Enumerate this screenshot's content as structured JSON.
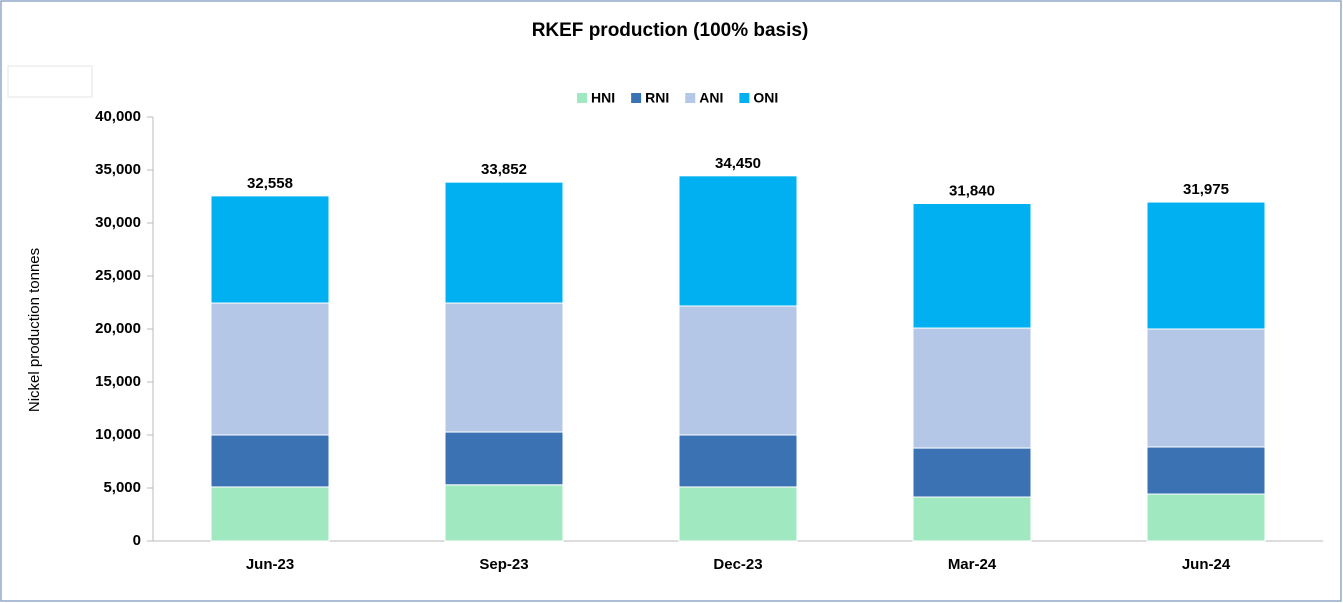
{
  "chart_data": {
    "type": "stacked_bar",
    "title": "RKEF production (100% basis)",
    "ylabel": "Nickel production tonnes",
    "categories": [
      "Jun-23",
      "Sep-23",
      "Dec-23",
      "Mar-24",
      "Jun-24"
    ],
    "series": [
      {
        "name": "HNI",
        "color": "#a0e8c0",
        "values": [
          5100,
          5300,
          5100,
          4150,
          4430
        ]
      },
      {
        "name": "RNI",
        "color": "#3a72b4",
        "values": [
          4900,
          4980,
          4900,
          4620,
          4440
        ]
      },
      {
        "name": "ANI",
        "color": "#b4c7e7",
        "values": [
          12450,
          12170,
          12170,
          11320,
          11130
        ]
      },
      {
        "name": "ONI",
        "color": "#00b0f0",
        "values": [
          10108,
          11402,
          12280,
          11750,
          11975
        ]
      }
    ],
    "totals": {
      "values": [
        32558,
        33852,
        34450,
        31840,
        31975
      ],
      "value_labels": [
        "32,558",
        "33,852",
        "34,450",
        "31,840",
        "31,975"
      ]
    },
    "ylim": [
      0,
      40000
    ],
    "yticks": [
      0,
      {
        "value": 5000,
        "label": "5,000"
      },
      {
        "value": 10000,
        "label": "10,000"
      },
      {
        "value": 15000,
        "label": "15,000"
      },
      {
        "value": 20000,
        "label": "20,000"
      },
      {
        "value": 25000,
        "label": "25,000"
      },
      {
        "value": 30000,
        "label": "30,000"
      },
      {
        "value": 35000,
        "label": "35,000"
      },
      {
        "value": 40000,
        "label": "40,000"
      }
    ],
    "legend": "top",
    "grid": false
  }
}
